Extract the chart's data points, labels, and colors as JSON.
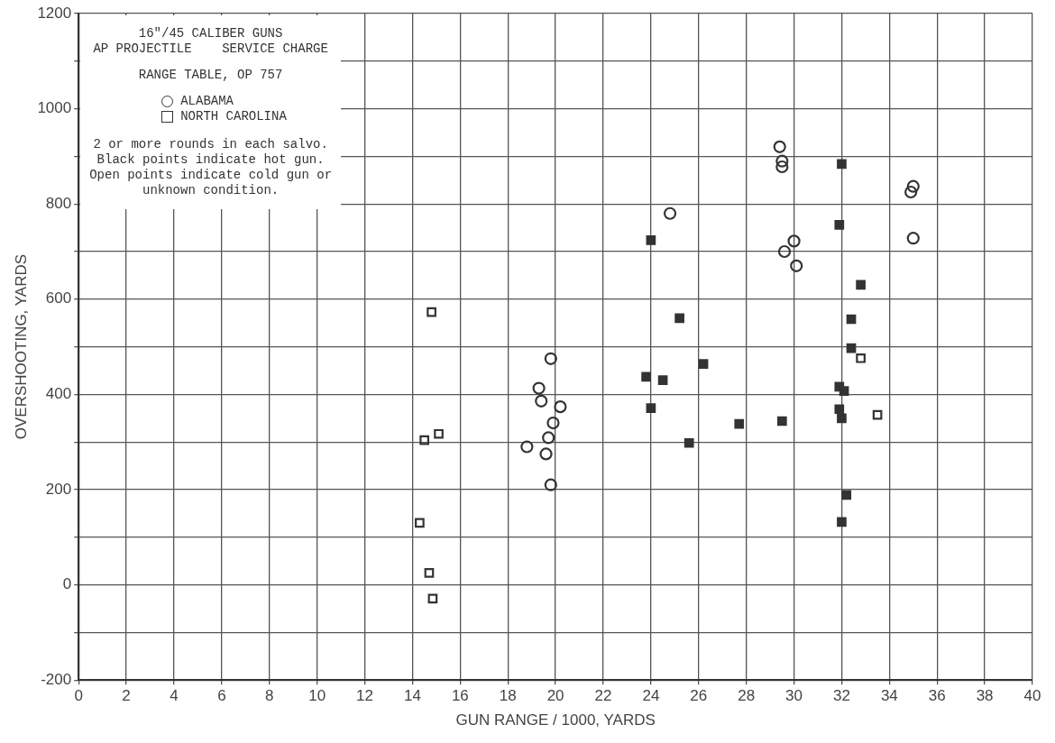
{
  "chart_data": {
    "type": "scatter",
    "title": "16\"/45 CALIBER GUNS\nAP PROJECTILE    SERVICE CHARGE",
    "subtitle": "RANGE TABLE, OP 757",
    "xlabel": "GUN RANGE / 1000, YARDS",
    "ylabel": "OVERSHOOTING, YARDS",
    "annotations": [
      "2 or more rounds in each salvo.\nBlack points indicate hot gun.\nOpen points indicate cold gun or\nunknown condition."
    ],
    "legend": "top left",
    "grid": true,
    "xlim": [
      0,
      40
    ],
    "xticks": [
      0,
      2,
      4,
      6,
      8,
      10,
      12,
      14,
      16,
      18,
      20,
      22,
      24,
      26,
      28,
      30,
      32,
      34,
      36,
      38,
      40
    ],
    "ylim": [
      -200,
      1200
    ],
    "yticks": [
      -200,
      {
        "value": -100,
        "label": null
      },
      0,
      {
        "value": 100,
        "label": null
      },
      200,
      {
        "value": 300,
        "label": null
      },
      400,
      {
        "value": 500,
        "label": null
      },
      600,
      {
        "value": 700,
        "label": null
      },
      800,
      {
        "value": 900,
        "label": null
      },
      1000,
      {
        "value": 1100,
        "label": null
      },
      1200
    ],
    "series": [
      {
        "name": "ALABAMA",
        "marker": "circle",
        "color": "#333333",
        "x": [
          19.8,
          19.3,
          19.4,
          20.2,
          19.9,
          19.7,
          18.8,
          19.6,
          19.8,
          24.8,
          29.4,
          29.5,
          29.5,
          29.6,
          30.0,
          30.1,
          35.0,
          34.9,
          35.0
        ],
        "values": [
          475,
          413,
          386,
          374,
          340,
          309,
          290,
          275,
          210,
          780,
          920,
          890,
          878,
          700,
          722,
          670,
          837,
          825,
          728
        ]
      },
      {
        "name": "NORTH CAROLINA",
        "marker": "square",
        "color": "#333333",
        "x": [
          14.8,
          14.5,
          15.1,
          14.3,
          14.7,
          14.85,
          32.8,
          33.5
        ],
        "values": [
          573,
          304,
          317,
          130,
          25,
          -29,
          476,
          357
        ]
      },
      {
        "marker": "square",
        "color": "#333333",
        "x": [
          24.0,
          23.8,
          24.5,
          24.0,
          25.2,
          26.2,
          25.6,
          27.7,
          29.5,
          32.0,
          31.9,
          32.8,
          32.4,
          32.4,
          31.9,
          32.1,
          31.9,
          32.0,
          32.2,
          32.0
        ],
        "values": [
          724,
          437,
          430,
          371,
          560,
          464,
          298,
          338,
          344,
          884,
          756,
          630,
          558,
          497,
          416,
          407,
          369,
          350,
          189,
          132
        ]
      }
    ]
  }
}
